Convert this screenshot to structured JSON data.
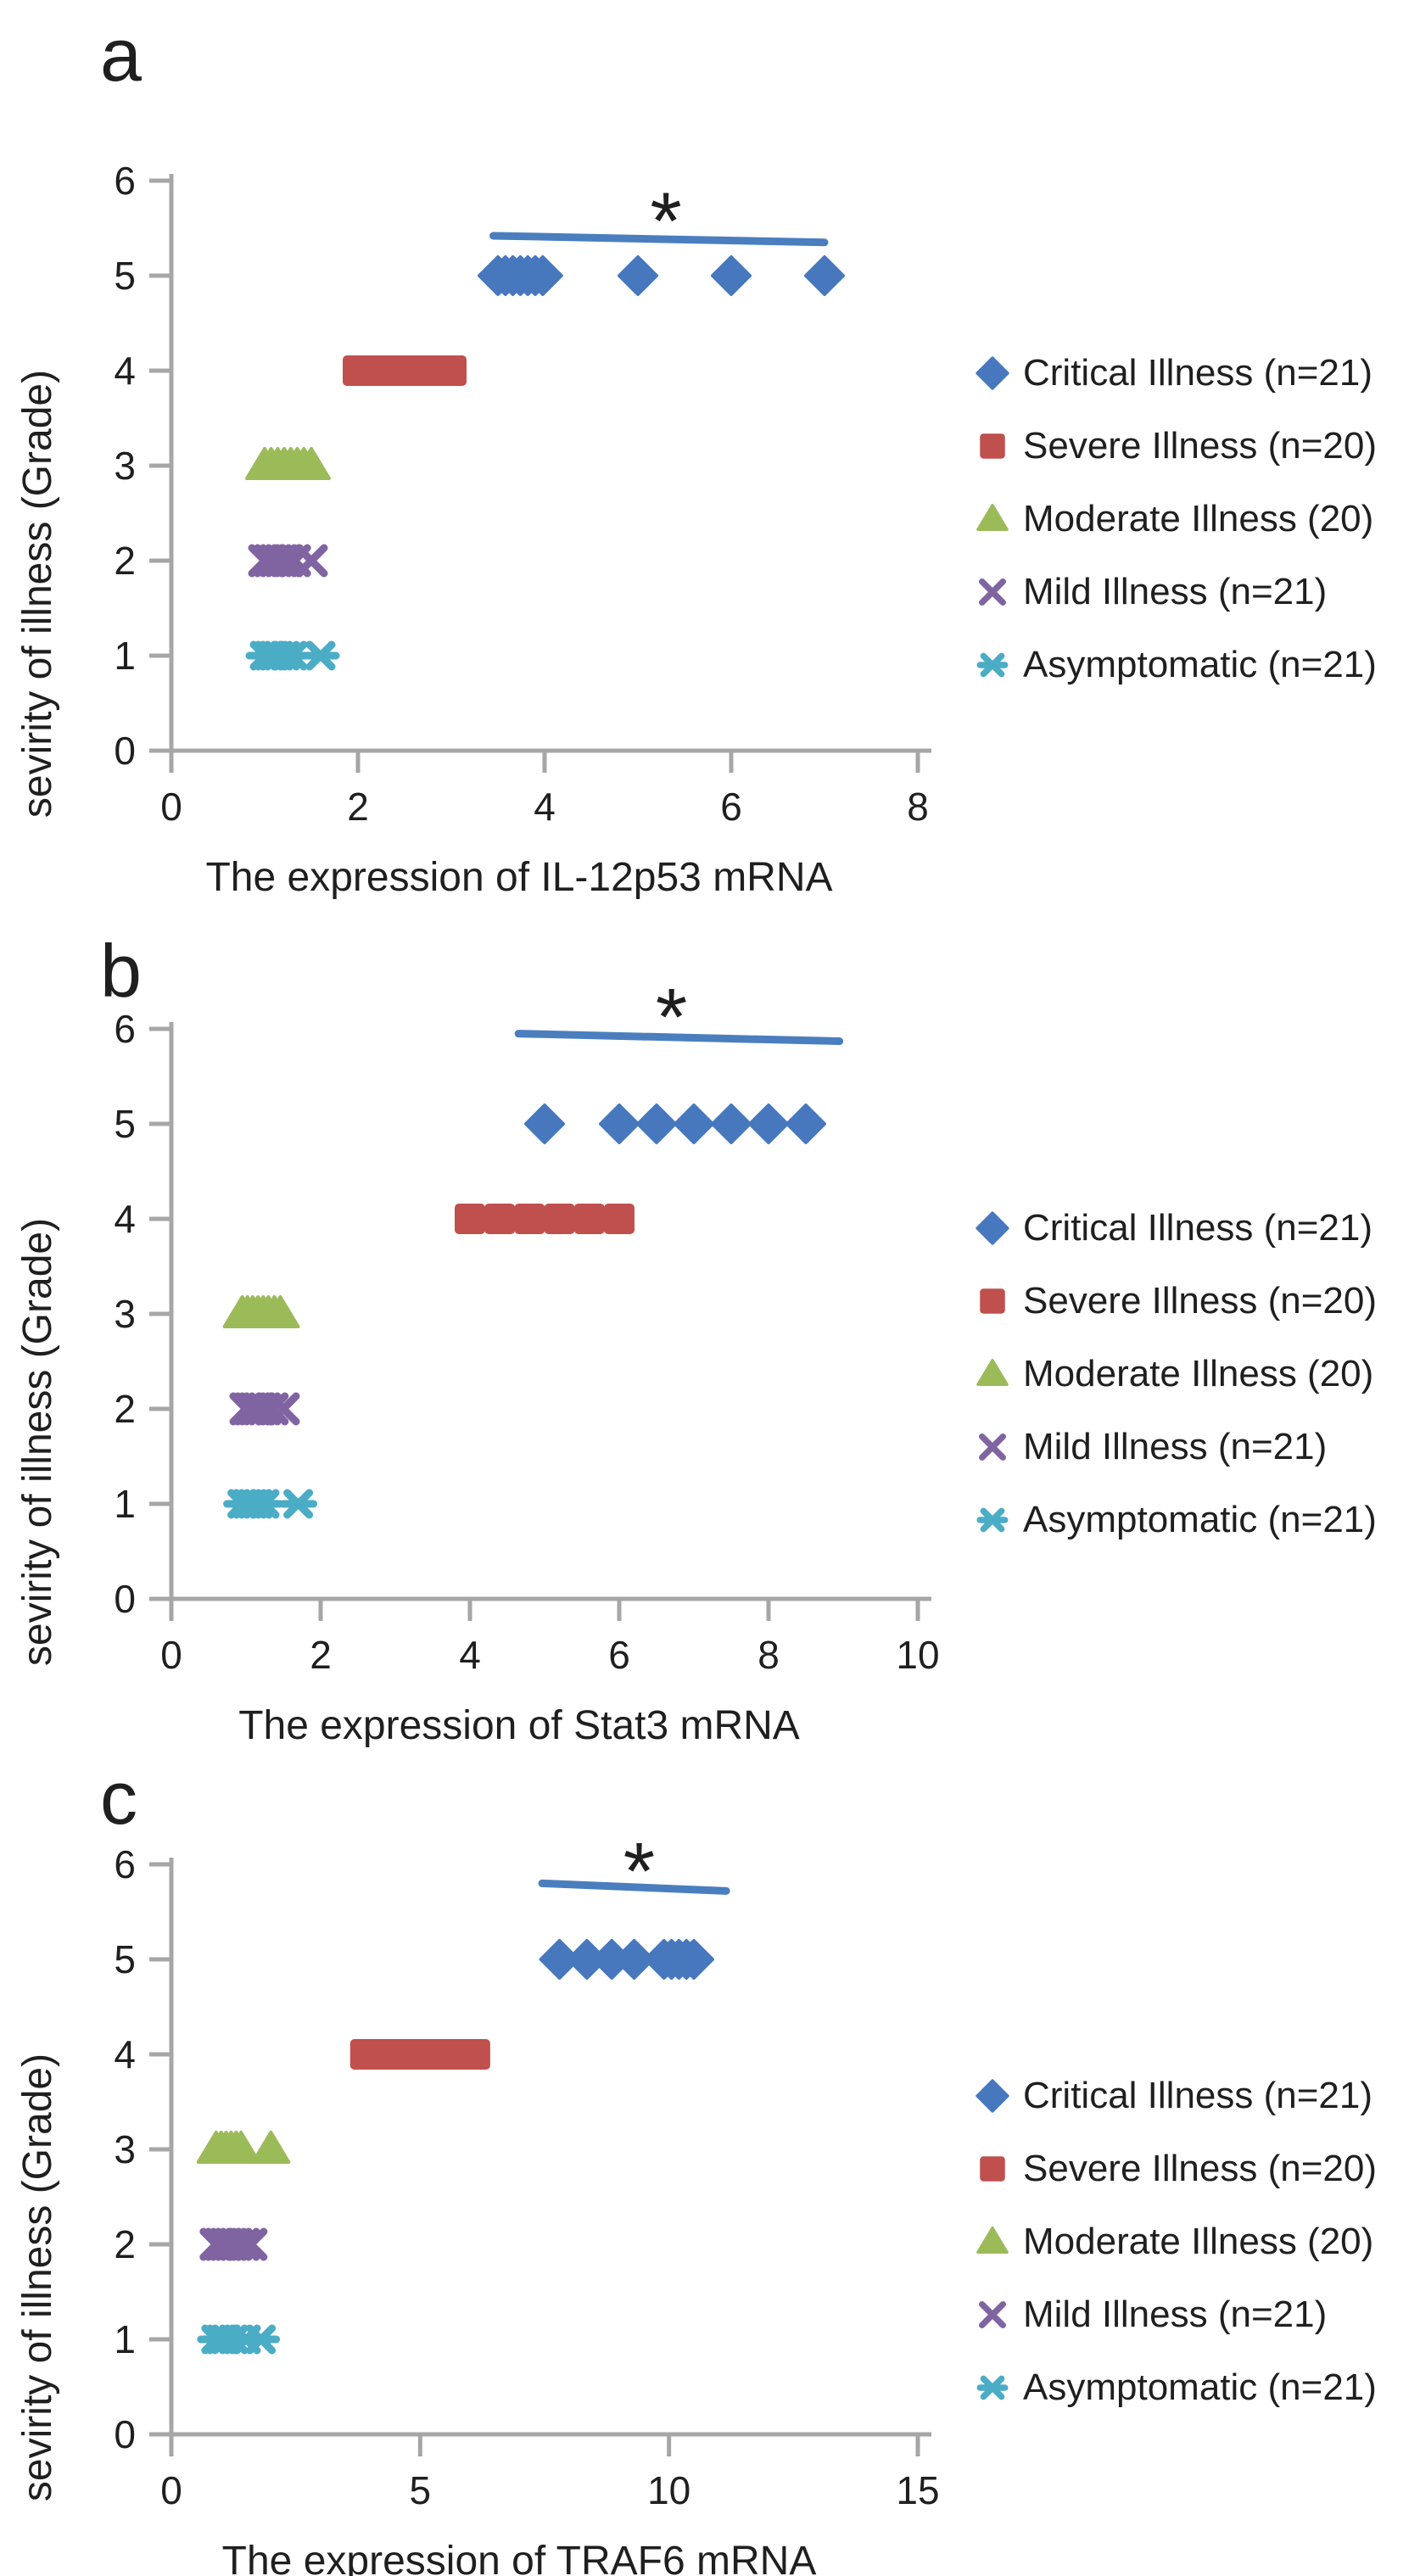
{
  "figure": {
    "background": "#FFFFFF",
    "y_axis_label": "sevirity of illness (Grade)",
    "significance_symbol": "*",
    "axis_color": "#A6A6A6",
    "text_color": "#1F1F1F",
    "sig_line_color": "#4A7EBE"
  },
  "legend": {
    "items": [
      {
        "label": "Critical Illness (n=21)",
        "marker": "diamond-icon",
        "color": "#4778BE"
      },
      {
        "label": "Severe Illness (n=20)",
        "marker": "square-icon",
        "color": "#C0504D"
      },
      {
        "label": "Moderate Illness (20)",
        "marker": "triangle-icon",
        "color": "#9BBB59"
      },
      {
        "label": "Mild Illness (n=21)",
        "marker": "x-icon",
        "color": "#8064A2"
      },
      {
        "label": "Asymptomatic (n=21)",
        "marker": "x-bar-icon",
        "color": "#4BACC6"
      }
    ]
  },
  "chart_data": [
    {
      "id": "a",
      "panel_label": "a",
      "type": "scatter",
      "xlabel": "The expression of IL-12p53 mRNA",
      "ylabel": "sevirity of illness (Grade)",
      "xlim": [
        0,
        8
      ],
      "xticks": [
        0,
        2,
        4,
        6,
        8
      ],
      "ylim": [
        0,
        6
      ],
      "yticks": [
        0,
        1,
        2,
        3,
        4,
        5,
        6
      ],
      "grid": false,
      "legend_position": "right",
      "series": [
        {
          "name": "Critical Illness (n=21)",
          "marker": "diamond",
          "color": "#4778BE",
          "y": 5,
          "x": [
            3.5,
            3.58,
            3.66,
            3.74,
            3.82,
            3.9,
            3.98,
            5.0,
            6.0,
            7.0
          ]
        },
        {
          "name": "Severe Illness (n=20)",
          "marker": "square",
          "color": "#C0504D",
          "y": 4,
          "x": [
            2.0,
            2.1,
            2.2,
            2.3,
            2.4,
            2.5,
            2.6,
            2.7,
            2.8,
            2.9,
            3.0
          ]
        },
        {
          "name": "Moderate Illness (20)",
          "marker": "triangle",
          "color": "#9BBB59",
          "y": 3,
          "x": [
            1.0,
            1.07,
            1.14,
            1.21,
            1.28,
            1.35,
            1.42,
            1.5
          ]
        },
        {
          "name": "Mild Illness (n=21)",
          "marker": "x",
          "color": "#8064A2",
          "y": 2,
          "x": [
            1.0,
            1.06,
            1.12,
            1.18,
            1.24,
            1.32,
            1.5
          ]
        },
        {
          "name": "Asymptomatic (n=21)",
          "marker": "x-bar",
          "color": "#4BACC6",
          "y": 1,
          "x": [
            1.0,
            1.05,
            1.1,
            1.15,
            1.22,
            1.3,
            1.6
          ]
        }
      ],
      "significance": {
        "symbol": "*",
        "line_x": [
          3.45,
          7.0
        ],
        "line_y": [
          5.42,
          5.35
        ],
        "star_x": 5.3,
        "star_y": 5.8
      }
    },
    {
      "id": "b",
      "panel_label": "b",
      "type": "scatter",
      "xlabel": "The expression of Stat3 mRNA",
      "ylabel": "sevirity of illness (Grade)",
      "xlim": [
        0,
        10
      ],
      "xticks": [
        0,
        2,
        4,
        6,
        8,
        10
      ],
      "ylim": [
        0,
        6
      ],
      "yticks": [
        0,
        1,
        2,
        3,
        4,
        5,
        6
      ],
      "grid": false,
      "legend_position": "right",
      "series": [
        {
          "name": "Critical Illness (n=21)",
          "marker": "diamond",
          "color": "#4778BE",
          "y": 5,
          "x": [
            5.0,
            6.0,
            6.5,
            7.0,
            7.5,
            8.0,
            8.5
          ]
        },
        {
          "name": "Severe Illness (n=20)",
          "marker": "square",
          "color": "#C0504D",
          "y": 4,
          "x": [
            4.0,
            4.4,
            4.8,
            5.2,
            5.6,
            6.0
          ]
        },
        {
          "name": "Moderate Illness (20)",
          "marker": "triangle",
          "color": "#9BBB59",
          "y": 3,
          "x": [
            0.95,
            1.02,
            1.09,
            1.16,
            1.23,
            1.3,
            1.38,
            1.46
          ]
        },
        {
          "name": "Mild Illness (n=21)",
          "marker": "x",
          "color": "#8064A2",
          "y": 2,
          "x": [
            1.0,
            1.06,
            1.12,
            1.18,
            1.25,
            1.35,
            1.5
          ]
        },
        {
          "name": "Asymptomatic (n=21)",
          "marker": "x-bar",
          "color": "#4BACC6",
          "y": 1,
          "x": [
            0.95,
            1.02,
            1.09,
            1.16,
            1.25,
            1.7
          ]
        }
      ],
      "significance": {
        "symbol": "*",
        "line_x": [
          4.65,
          8.95
        ],
        "line_y": [
          5.95,
          5.87
        ],
        "star_x": 6.7,
        "star_y": 6.35
      }
    },
    {
      "id": "c",
      "panel_label": "c",
      "type": "scatter",
      "xlabel": "The expression of TRAF6 mRNA",
      "ylabel": "sevirity of illness (Grade)",
      "xlim": [
        0,
        15
      ],
      "xticks": [
        0,
        5,
        10,
        15
      ],
      "ylim": [
        0,
        6
      ],
      "yticks": [
        0,
        1,
        2,
        3,
        4,
        5,
        6
      ],
      "grid": false,
      "legend_position": "right",
      "series": [
        {
          "name": "Critical Illness (n=21)",
          "marker": "diamond",
          "color": "#4778BE",
          "y": 5,
          "x": [
            7.8,
            8.35,
            8.85,
            9.3,
            9.9,
            10.05,
            10.2,
            10.35,
            10.5
          ]
        },
        {
          "name": "Severe Illness (n=20)",
          "marker": "square",
          "color": "#C0504D",
          "y": 4,
          "x": [
            3.9,
            4.1,
            4.3,
            4.5,
            4.7,
            4.9,
            5.1,
            5.3,
            5.5,
            5.7,
            5.9,
            6.1
          ]
        },
        {
          "name": "Moderate Illness (20)",
          "marker": "triangle",
          "color": "#9BBB59",
          "y": 3,
          "x": [
            0.9,
            1.0,
            1.1,
            1.2,
            1.3,
            1.4,
            2.0
          ]
        },
        {
          "name": "Mild Illness (n=21)",
          "marker": "x",
          "color": "#8064A2",
          "y": 2,
          "x": [
            0.9,
            1.0,
            1.1,
            1.2,
            1.3,
            1.45,
            1.6
          ]
        },
        {
          "name": "Asymptomatic (n=21)",
          "marker": "x-bar",
          "color": "#4BACC6",
          "y": 1,
          "x": [
            0.9,
            1.0,
            1.1,
            1.25,
            1.5,
            1.8
          ]
        }
      ],
      "significance": {
        "symbol": "*",
        "line_x": [
          7.45,
          11.15
        ],
        "line_y": [
          5.8,
          5.72
        ],
        "star_x": 9.4,
        "star_y": 6.15
      }
    }
  ]
}
